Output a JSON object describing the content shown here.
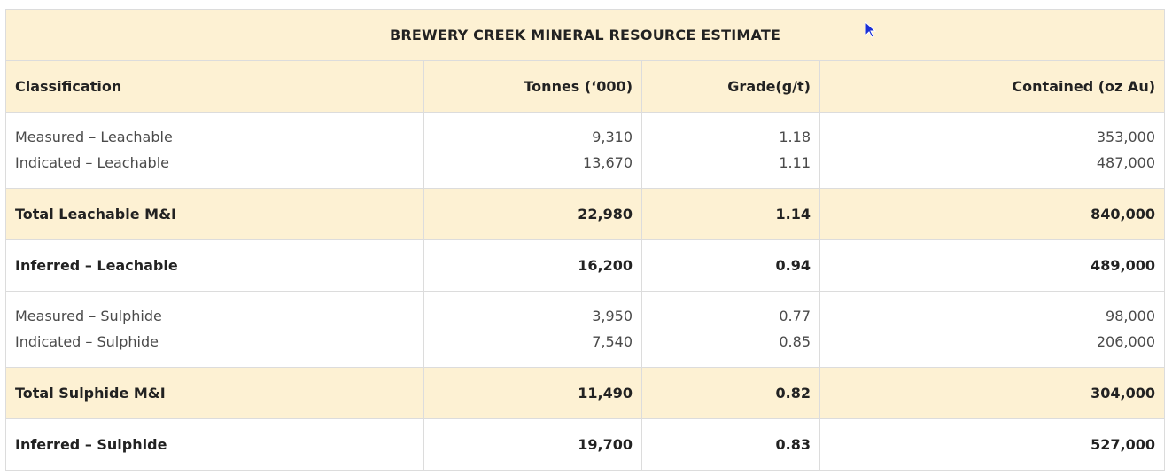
{
  "table": {
    "title": "BREWERY CREEK MINERAL RESOURCE ESTIMATE",
    "headers": [
      "Classification",
      "Tonnes (‘000)",
      "Grade(g/t)",
      "Contained (oz Au)"
    ],
    "rows": [
      {
        "kind": "detail",
        "lines": [
          [
            "Measured – Leachable",
            "9,310",
            "1.18",
            "353,000"
          ],
          [
            "Indicated – Leachable",
            "13,670",
            "1.11",
            "487,000"
          ]
        ]
      },
      {
        "kind": "total",
        "cells": [
          "Total Leachable M&I",
          "22,980",
          "1.14",
          "840,000"
        ]
      },
      {
        "kind": "inferred",
        "cells": [
          "Inferred – Leachable",
          "16,200",
          "0.94",
          "489,000"
        ]
      },
      {
        "kind": "detail",
        "lines": [
          [
            "Measured – Sulphide",
            "3,950",
            "0.77",
            "98,000"
          ],
          [
            "Indicated – Sulphide",
            "7,540",
            "0.85",
            "206,000"
          ]
        ]
      },
      {
        "kind": "total",
        "cells": [
          "Total Sulphide M&I",
          "11,490",
          "0.82",
          "304,000"
        ]
      },
      {
        "kind": "inferred",
        "cells": [
          "Inferred – Sulphide",
          "19,700",
          "0.83",
          "527,000"
        ]
      }
    ]
  },
  "colors": {
    "header_background": "#fdf1d3",
    "border": "#dcdcdc",
    "cursor": "#1a2fd6"
  },
  "cursor": {
    "icon": "mouse-pointer-icon"
  }
}
